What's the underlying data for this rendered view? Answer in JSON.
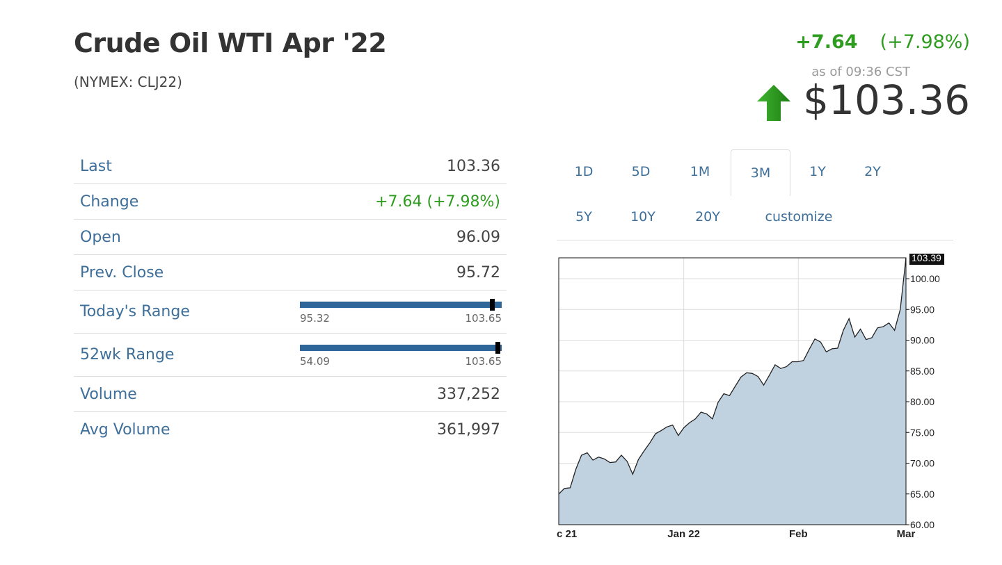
{
  "header": {
    "title": "Crude Oil WTI Apr '22",
    "subtitle": "(NYMEX: CLJ22)",
    "change_abs": "+7.64",
    "change_pct": "(+7.98%)",
    "as_of": "as of 09:36 CST",
    "price": "$103.36",
    "colors": {
      "positive": "#2e9d1f",
      "arrow": "#2e9d1f",
      "link": "#3e6f9a"
    }
  },
  "stats": {
    "last": {
      "label": "Last",
      "value": "103.36"
    },
    "change": {
      "label": "Change",
      "value": "+7.64 (+7.98%)"
    },
    "open": {
      "label": "Open",
      "value": "96.09"
    },
    "prev_close": {
      "label": "Prev. Close",
      "value": "95.72"
    },
    "todays_range": {
      "label": "Today's Range",
      "low": "95.32",
      "high": "103.65",
      "current": 103.36
    },
    "wk52_range": {
      "label": "52wk Range",
      "low": "54.09",
      "high": "103.65",
      "current": 103.36
    },
    "volume": {
      "label": "Volume",
      "value": "337,252"
    },
    "avg_volume": {
      "label": "Avg Volume",
      "value": "361,997"
    }
  },
  "tabs": {
    "t1d": "1D",
    "t5d": "5D",
    "t1m": "1M",
    "t3m": "3M",
    "t1y": "1Y",
    "t2y": "2Y",
    "t5y": "5Y",
    "t10y": "10Y",
    "t20y": "20Y",
    "customize": "customize",
    "active": "3M"
  },
  "chart_data": {
    "type": "area",
    "x_labels": [
      "c 21",
      "Jan 22",
      "Feb",
      "Mar"
    ],
    "y_ticks": [
      "100.00",
      "95.00",
      "90.00",
      "85.00",
      "80.00",
      "75.00",
      "70.00",
      "65.00",
      "60.00"
    ],
    "ylim": [
      60,
      103.39
    ],
    "last_value_label": "103.39",
    "grid": true,
    "values": [
      65.0,
      65.9,
      66.0,
      69.0,
      71.3,
      71.7,
      70.5,
      71.0,
      70.7,
      70.1,
      70.2,
      71.3,
      70.3,
      68.2,
      70.6,
      72.0,
      73.3,
      74.8,
      75.3,
      75.9,
      76.2,
      74.5,
      75.8,
      76.6,
      77.2,
      78.3,
      78.0,
      77.2,
      79.9,
      81.3,
      81.0,
      82.5,
      84.0,
      84.7,
      84.6,
      84.1,
      82.7,
      84.3,
      86.0,
      85.4,
      85.7,
      86.5,
      86.5,
      86.7,
      88.5,
      90.2,
      89.7,
      88.1,
      88.6,
      88.7,
      91.6,
      93.5,
      90.5,
      91.8,
      90.1,
      90.4,
      92.0,
      92.2,
      92.8,
      91.6,
      95.0,
      103.39
    ],
    "colors": {
      "fill": "#c0d1e0",
      "line": "#222222",
      "grid": "#dddddd"
    }
  }
}
